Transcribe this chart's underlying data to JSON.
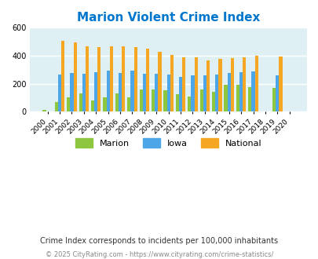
{
  "title": "Marion Violent Crime Index",
  "years": [
    2000,
    2001,
    2002,
    2003,
    2004,
    2005,
    2006,
    2007,
    2008,
    2009,
    2010,
    2011,
    2012,
    2013,
    2014,
    2015,
    2016,
    2017,
    2018,
    2019,
    2020
  ],
  "marion": [
    15,
    70,
    105,
    130,
    82,
    100,
    130,
    100,
    160,
    160,
    155,
    125,
    108,
    160,
    140,
    190,
    193,
    177,
    0,
    168,
    0
  ],
  "iowa": [
    0,
    265,
    278,
    270,
    283,
    295,
    275,
    293,
    273,
    270,
    265,
    250,
    258,
    257,
    263,
    275,
    280,
    290,
    0,
    262,
    0
  ],
  "national": [
    0,
    505,
    493,
    468,
    460,
    469,
    468,
    464,
    453,
    430,
    404,
    390,
    390,
    368,
    376,
    384,
    386,
    399,
    0,
    396,
    0
  ],
  "marion_color": "#8dc63f",
  "iowa_color": "#4da6e8",
  "national_color": "#f5a623",
  "bg_color": "#dff0f5",
  "grid_color": "#ffffff",
  "ylim": [
    0,
    600
  ],
  "yticks": [
    0,
    200,
    400,
    600
  ],
  "title_color": "#0077cc",
  "subtitle": "Crime Index corresponds to incidents per 100,000 inhabitants",
  "footer": "© 2025 CityRating.com - https://www.cityrating.com/crime-statistics/",
  "subtitle_color": "#333333",
  "footer_color": "#888888"
}
